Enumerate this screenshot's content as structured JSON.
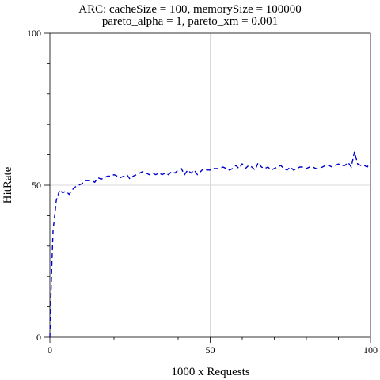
{
  "chart_data": {
    "type": "line",
    "title": "ARC: cacheSize = 100, memorySize = 100000",
    "subtitle": "pareto_alpha = 1, pareto_xm = 0.001",
    "xlabel": "1000 x Requests",
    "ylabel": "HitRate",
    "xlim": [
      0,
      100
    ],
    "ylim": [
      0,
      100
    ],
    "x_ticks": [
      0,
      50,
      100
    ],
    "x_tick_labels": [
      "0",
      "50",
      "100"
    ],
    "y_ticks": [
      0,
      50,
      100
    ],
    "y_tick_labels": [
      "0",
      "50",
      "100"
    ],
    "grid": true,
    "line_style": "dashed",
    "colors": {
      "series": "#0000cc",
      "grid": "#d9d9d9",
      "frame": "#000000"
    },
    "series": [
      {
        "x": [
          0,
          0.5,
          1,
          1.5,
          2,
          2.5,
          3,
          4,
          5,
          6,
          7,
          8,
          9,
          10,
          11,
          12,
          13,
          14,
          15,
          16,
          17,
          18,
          19,
          20,
          21,
          22,
          23,
          24,
          25,
          26,
          27,
          28,
          29,
          30,
          31,
          32,
          33,
          34,
          35,
          36,
          37,
          38,
          39,
          40,
          41,
          42,
          43,
          44,
          45,
          46,
          47,
          48,
          49,
          50,
          51,
          52,
          53,
          54,
          55,
          56,
          57,
          58,
          59,
          60,
          61,
          62,
          63,
          64,
          65,
          66,
          67,
          68,
          69,
          70,
          71,
          72,
          73,
          74,
          75,
          76,
          77,
          78,
          79,
          80,
          81,
          82,
          83,
          84,
          85,
          86,
          87,
          88,
          89,
          90,
          91,
          92,
          93,
          94,
          95,
          96,
          97,
          98,
          99,
          100
        ],
        "y": [
          0,
          20,
          35,
          40,
          45,
          46.5,
          48.5,
          47.5,
          48,
          47,
          48.5,
          49.5,
          50,
          50.5,
          51.5,
          51.5,
          51.5,
          51,
          52.5,
          52,
          52.5,
          53,
          53,
          53.5,
          53,
          52.5,
          53,
          53.5,
          52,
          53,
          53.5,
          54,
          54.5,
          54,
          53.5,
          54,
          53.5,
          54,
          53.5,
          54,
          53.5,
          54.5,
          54,
          55,
          55.5,
          53.5,
          55,
          54,
          55,
          53.5,
          54.5,
          55.5,
          55,
          55,
          55.5,
          55.5,
          55.5,
          56,
          55.5,
          55,
          55.5,
          56.5,
          55.5,
          57,
          55.5,
          56.5,
          56,
          55,
          57.5,
          56,
          55.5,
          56,
          55,
          55.5,
          56,
          56.5,
          55.5,
          55,
          56,
          55,
          55.5,
          56,
          56,
          55.5,
          56,
          56,
          55.5,
          55.5,
          56,
          56.5,
          56.5,
          56,
          56.5,
          57,
          56.5,
          56.5,
          57.5,
          56,
          61,
          57,
          56.5,
          56.5,
          56,
          57.5
        ]
      }
    ]
  }
}
